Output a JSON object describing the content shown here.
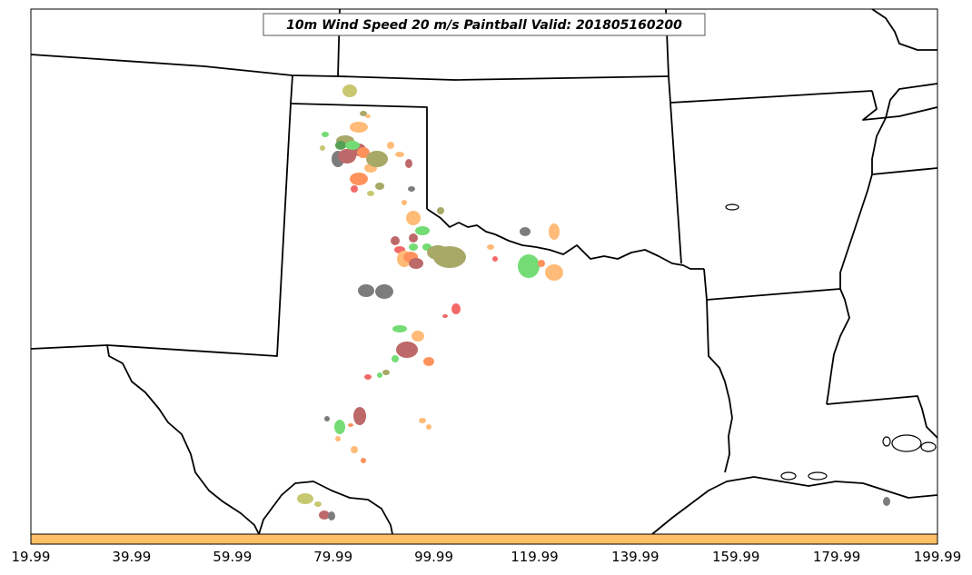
{
  "title": "10m Wind Speed 20 m/s Paintball Valid: 201805160200",
  "colorbar": {
    "color": "#ffbf66",
    "tick_labels": [
      "19.99",
      "39.99",
      "59.99",
      "79.99",
      "99.99",
      "119.99",
      "139.99",
      "159.99",
      "179.99",
      "199.99"
    ]
  },
  "colors": {
    "light_green": "#5cd65c",
    "olive": "#99994d",
    "yellow_olive": "#bfbf59",
    "light_orange": "#ffb060",
    "orange": "#ff8040",
    "red": "#f05050",
    "brown_red": "#b35050",
    "gray": "#666666",
    "dark_green": "#3a8f3a"
  }
}
